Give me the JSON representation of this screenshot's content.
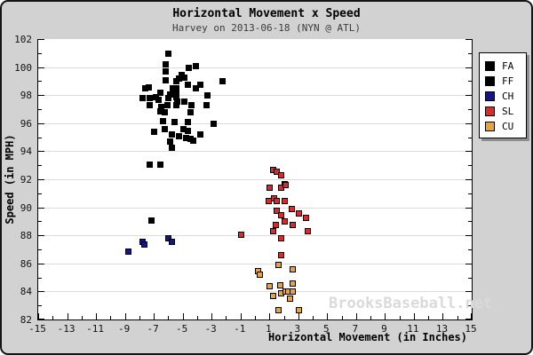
{
  "title": "Horizontal Movement x Speed",
  "subtitle": "Harvey on 2013-06-18 (NYN @ ATL)",
  "watermark": "BrooksBaseball.net",
  "colors": {
    "background": "#d2d2d2",
    "plot_background": "#ffffff",
    "gridline": "#dcdcdc",
    "axis": "#000000",
    "watermark": "#dadada",
    "legend_shadow": "#8f8f8f"
  },
  "chart_data": {
    "type": "scatter",
    "title": "Horizontal Movement x Speed",
    "subtitle": "Harvey on 2013-06-18 (NYN @ ATL)",
    "xlabel": "Horizontal Movement (in Inches)",
    "ylabel": "Speed (in MPH)",
    "xlim": [
      -15,
      15
    ],
    "ylim": [
      82,
      102
    ],
    "x_ticks": [
      -15,
      -13,
      -11,
      -9,
      -7,
      -5,
      -3,
      -1,
      1,
      3,
      5,
      7,
      9,
      11,
      13,
      15
    ],
    "y_ticks": [
      82,
      84,
      86,
      88,
      90,
      92,
      94,
      96,
      98,
      100,
      102
    ],
    "minor_tick_step": 1,
    "grid": "horizontal",
    "grid_values": [
      84,
      86,
      88,
      90,
      92,
      94,
      96,
      98,
      100
    ],
    "legend_position": "right",
    "series": [
      {
        "name": "FA",
        "color": "#000000",
        "points": []
      },
      {
        "name": "FF",
        "color": "#000000",
        "points": [
          [
            -6.0,
            101.0
          ],
          [
            -6.2,
            100.2
          ],
          [
            -4.6,
            100.0
          ],
          [
            -4.1,
            100.1
          ],
          [
            -6.2,
            99.7
          ],
          [
            -5.1,
            99.5
          ],
          [
            -4.9,
            99.3
          ],
          [
            -6.2,
            99.1
          ],
          [
            -5.3,
            99.2
          ],
          [
            -5.5,
            99.0
          ],
          [
            -7.4,
            98.6
          ],
          [
            -7.6,
            98.5
          ],
          [
            -4.7,
            98.8
          ],
          [
            -3.8,
            98.8
          ],
          [
            -6.6,
            98.2
          ],
          [
            -5.7,
            98.5
          ],
          [
            -4.1,
            98.5
          ],
          [
            -5.9,
            98.1
          ],
          [
            -3.3,
            98.0
          ],
          [
            -7.8,
            97.8
          ],
          [
            -7.3,
            97.8
          ],
          [
            -6.9,
            97.9
          ],
          [
            -6.7,
            97.7
          ],
          [
            -6.0,
            97.8
          ],
          [
            -4.9,
            97.6
          ],
          [
            -7.3,
            97.3
          ],
          [
            -6.5,
            97.2
          ],
          [
            -4.4,
            97.3
          ],
          [
            -3.4,
            97.3
          ],
          [
            -6.1,
            97.3
          ],
          [
            -5.5,
            98.5
          ],
          [
            -5.5,
            98.2
          ],
          [
            -5.5,
            97.9
          ],
          [
            -5.4,
            97.6
          ],
          [
            -5.5,
            97.3
          ],
          [
            -6.6,
            96.9
          ],
          [
            -6.3,
            96.8
          ],
          [
            -4.5,
            96.8
          ],
          [
            -6.4,
            96.2
          ],
          [
            -5.6,
            96.1
          ],
          [
            -4.7,
            96.1
          ],
          [
            -2.9,
            96.0
          ],
          [
            -6.3,
            95.6
          ],
          [
            -7.0,
            95.4
          ],
          [
            -5.0,
            95.6
          ],
          [
            -4.7,
            95.5
          ],
          [
            -5.8,
            95.2
          ],
          [
            -5.3,
            95.1
          ],
          [
            -4.8,
            95.0
          ],
          [
            -4.5,
            94.9
          ],
          [
            -3.8,
            95.2
          ],
          [
            -4.3,
            94.8
          ],
          [
            -5.9,
            94.7
          ],
          [
            -5.8,
            94.3
          ],
          [
            -2.3,
            99.0
          ],
          [
            -7.3,
            93.1
          ],
          [
            -6.6,
            93.1
          ],
          [
            -7.2,
            89.1
          ]
        ]
      },
      {
        "name": "CH",
        "color": "#14148c",
        "points": [
          [
            -7.8,
            87.6
          ],
          [
            -7.7,
            87.4
          ],
          [
            -6.0,
            87.8
          ],
          [
            -5.8,
            87.6
          ],
          [
            -8.8,
            86.9
          ]
        ]
      },
      {
        "name": "SL",
        "color": "#d92b2b",
        "points": [
          [
            1.2,
            92.7
          ],
          [
            1.5,
            92.6
          ],
          [
            1.8,
            92.3
          ],
          [
            2.0,
            91.7
          ],
          [
            1.8,
            91.4
          ],
          [
            2.1,
            91.6
          ],
          [
            1.0,
            91.4
          ],
          [
            0.9,
            90.5
          ],
          [
            1.3,
            90.7
          ],
          [
            1.5,
            90.5
          ],
          [
            2.0,
            90.5
          ],
          [
            1.5,
            89.8
          ],
          [
            1.8,
            89.5
          ],
          [
            2.5,
            89.9
          ],
          [
            3.0,
            89.6
          ],
          [
            3.5,
            89.3
          ],
          [
            1.4,
            88.8
          ],
          [
            2.0,
            89.0
          ],
          [
            2.6,
            88.8
          ],
          [
            1.2,
            88.3
          ],
          [
            3.6,
            88.3
          ],
          [
            -1.0,
            88.1
          ],
          [
            1.8,
            87.8
          ],
          [
            1.8,
            86.6
          ]
        ]
      },
      {
        "name": "CU",
        "color": "#e8a33d",
        "points": [
          [
            1.6,
            85.9
          ],
          [
            0.2,
            85.5
          ],
          [
            2.6,
            85.6
          ],
          [
            0.3,
            85.2
          ],
          [
            1.0,
            84.4
          ],
          [
            1.7,
            84.5
          ],
          [
            2.6,
            84.6
          ],
          [
            1.2,
            83.7
          ],
          [
            1.8,
            83.9
          ],
          [
            2.1,
            84.0
          ],
          [
            2.3,
            84.0
          ],
          [
            2.6,
            84.0
          ],
          [
            2.4,
            83.5
          ],
          [
            1.6,
            82.7
          ],
          [
            3.0,
            82.7
          ]
        ]
      }
    ]
  }
}
